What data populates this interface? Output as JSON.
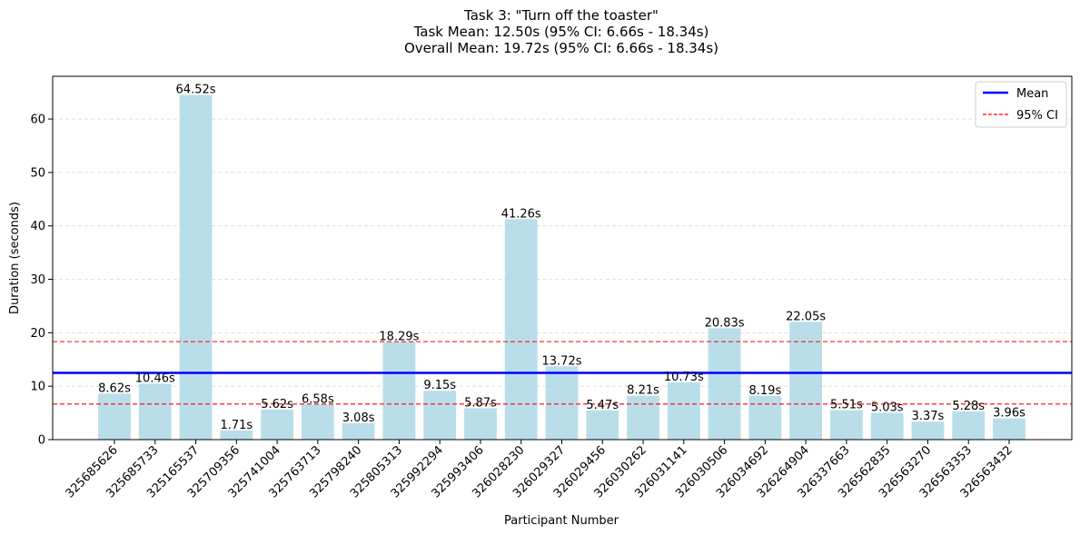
{
  "chart_data": {
    "type": "bar",
    "title_lines": [
      "Task 3: \"Turn off the toaster\"",
      "Task Mean: 12.50s (95% CI: 6.66s - 18.34s)",
      "Overall Mean: 19.72s (95% CI: 6.66s - 18.34s)"
    ],
    "xlabel": "Participant Number",
    "ylabel": "Duration (seconds)",
    "ylim": [
      0,
      68
    ],
    "yticks": [
      0,
      10,
      20,
      30,
      40,
      50,
      60
    ],
    "grid": "horizontal dashed",
    "categories": [
      "325685626",
      "325685733",
      "325165537",
      "325709356",
      "325741004",
      "325763713",
      "325798240",
      "325805313",
      "325992294",
      "325993406",
      "326028230",
      "326029327",
      "326029456",
      "326030262",
      "326031141",
      "326030506",
      "326034692",
      "326264904",
      "326337663",
      "326562835",
      "326563270",
      "326563353",
      "326563432"
    ],
    "values": [
      8.62,
      10.46,
      64.52,
      1.71,
      5.62,
      6.58,
      3.08,
      18.29,
      9.15,
      5.87,
      41.26,
      13.72,
      5.47,
      8.21,
      10.73,
      20.83,
      8.19,
      22.05,
      5.51,
      5.03,
      3.37,
      5.28,
      3.96
    ],
    "value_labels": [
      "8.62s",
      "10.46s",
      "64.52s",
      "1.71s",
      "5.62s",
      "6.58s",
      "3.08s",
      "18.29s",
      "9.15s",
      "5.87s",
      "41.26s",
      "13.72s",
      "5.47s",
      "8.21s",
      "10.73s",
      "20.83s",
      "8.19s",
      "22.05s",
      "5.51s",
      "5.03s",
      "3.37s",
      "5.28s",
      "3.96s"
    ],
    "mean": 12.5,
    "ci": [
      6.66,
      18.34
    ],
    "legend": {
      "position": "top-right",
      "entries": [
        {
          "label": "Mean",
          "color": "#0000ff",
          "style": "solid"
        },
        {
          "label": "95% CI",
          "color": "#ff0000",
          "style": "dashed"
        }
      ]
    },
    "colors": {
      "bar": "#add8e6",
      "mean": "#0000ff",
      "ci": "#ff0000",
      "grid": "#d9d9d9"
    }
  }
}
